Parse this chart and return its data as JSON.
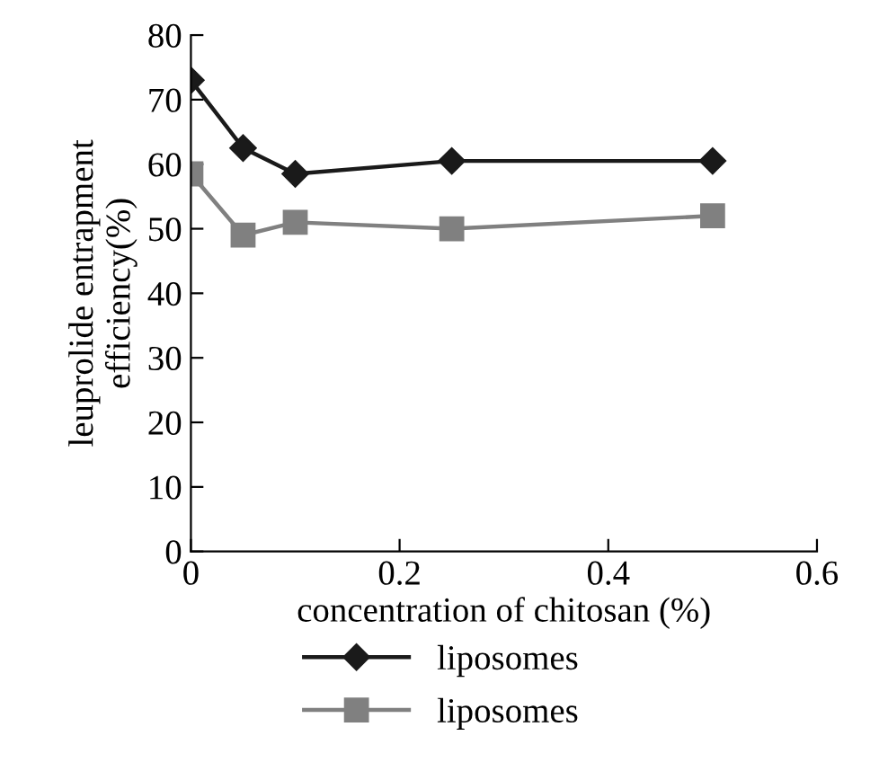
{
  "chart_data": {
    "type": "line",
    "xlabel": "concentration of chitosan (%)",
    "ylabel": "leuprolide entrapment\nefficiency(%)",
    "x": [
      0,
      0.05,
      0.1,
      0.25,
      0.5
    ],
    "series": [
      {
        "name": "liposomes",
        "color": "#1a1a1a",
        "marker": "diamond",
        "values": [
          73,
          62.5,
          58.5,
          60.5,
          60.5
        ]
      },
      {
        "name": "liposomes",
        "color": "#808080",
        "marker": "square",
        "values": [
          58.5,
          49,
          51,
          50,
          52
        ]
      }
    ],
    "xlim": [
      0,
      0.6
    ],
    "xticks": [
      0,
      0.2,
      0.4,
      0.6
    ],
    "ylim": [
      0,
      80
    ],
    "yticks": [
      0,
      10,
      20,
      30,
      40,
      50,
      60,
      70,
      80
    ],
    "grid": false,
    "legend": "bottom",
    "line_style": "solid"
  }
}
